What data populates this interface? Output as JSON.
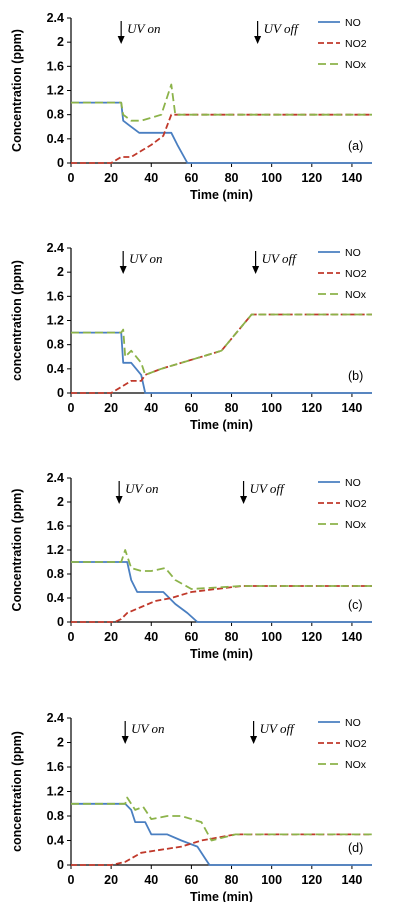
{
  "chart_data": [
    {
      "type": "line",
      "panel_label": "(a)",
      "xlabel": "Time (min)",
      "ylabel": "Concentration (ppm)",
      "xlim": [
        0,
        150
      ],
      "ylim": [
        0,
        2.4
      ],
      "xticks": [
        "0",
        "20",
        "40",
        "60",
        "80",
        "100",
        "120",
        "140"
      ],
      "yticks": [
        "0",
        "0.4",
        "0.8",
        "1.2",
        "1.6",
        "2",
        "2.4"
      ],
      "annotations": [
        {
          "text": "UV on",
          "x": 25
        },
        {
          "text": "UV off",
          "x": 93
        }
      ],
      "legend_position": "top-right",
      "series": [
        {
          "name": "NO",
          "color": "#4a7fc1",
          "dash": "solid",
          "points": [
            [
              0,
              1
            ],
            [
              25,
              1
            ],
            [
              26,
              0.7
            ],
            [
              30,
              0.6
            ],
            [
              34,
              0.5
            ],
            [
              50,
              0.5
            ],
            [
              53,
              0.3
            ],
            [
              58,
              0
            ],
            [
              150,
              0
            ]
          ]
        },
        {
          "name": "NO2",
          "color": "#c0392b",
          "dash": "6,3",
          "points": [
            [
              0,
              0
            ],
            [
              20,
              0
            ],
            [
              25,
              0.1
            ],
            [
              30,
              0.1
            ],
            [
              35,
              0.2
            ],
            [
              40,
              0.3
            ],
            [
              46,
              0.45
            ],
            [
              50,
              0.8
            ],
            [
              52,
              0.8
            ],
            [
              150,
              0.8
            ]
          ]
        },
        {
          "name": "NOx",
          "color": "#8cb34a",
          "dash": "8,4",
          "points": [
            [
              0,
              1
            ],
            [
              25,
              1
            ],
            [
              26,
              0.8
            ],
            [
              30,
              0.7
            ],
            [
              35,
              0.7
            ],
            [
              40,
              0.75
            ],
            [
              45,
              0.8
            ],
            [
              50,
              1.3
            ],
            [
              52,
              0.8
            ],
            [
              150,
              0.8
            ]
          ]
        }
      ]
    },
    {
      "type": "line",
      "panel_label": "(b)",
      "xlabel": "Time (min)",
      "ylabel": "concentration (ppm)",
      "xlim": [
        0,
        150
      ],
      "ylim": [
        0,
        2.4
      ],
      "xticks": [
        "0",
        "20",
        "40",
        "60",
        "80",
        "100",
        "120",
        "140"
      ],
      "yticks": [
        "0",
        "0.4",
        "0.8",
        "1.2",
        "1.6",
        "2",
        "2.4"
      ],
      "annotations": [
        {
          "text": "UV on",
          "x": 26
        },
        {
          "text": "UV off",
          "x": 92
        }
      ],
      "legend_position": "top-right",
      "series": [
        {
          "name": "NO",
          "color": "#4a7fc1",
          "dash": "solid",
          "points": [
            [
              0,
              1
            ],
            [
              25,
              1
            ],
            [
              26,
              0.5
            ],
            [
              30,
              0.5
            ],
            [
              35,
              0.3
            ],
            [
              37,
              0
            ],
            [
              150,
              0
            ]
          ]
        },
        {
          "name": "NO2",
          "color": "#c0392b",
          "dash": "6,3",
          "points": [
            [
              0,
              0
            ],
            [
              20,
              0
            ],
            [
              25,
              0.1
            ],
            [
              30,
              0.2
            ],
            [
              35,
              0.2
            ],
            [
              37,
              0.3
            ],
            [
              45,
              0.4
            ],
            [
              55,
              0.5
            ],
            [
              65,
              0.6
            ],
            [
              75,
              0.7
            ],
            [
              90,
              1.3
            ],
            [
              150,
              1.3
            ]
          ]
        },
        {
          "name": "NOx",
          "color": "#8cb34a",
          "dash": "8,4",
          "points": [
            [
              0,
              1
            ],
            [
              25,
              1
            ],
            [
              26,
              1.05
            ],
            [
              27,
              0.6
            ],
            [
              30,
              0.7
            ],
            [
              35,
              0.5
            ],
            [
              37,
              0.3
            ],
            [
              45,
              0.4
            ],
            [
              55,
              0.5
            ],
            [
              65,
              0.6
            ],
            [
              75,
              0.7
            ],
            [
              90,
              1.3
            ],
            [
              150,
              1.3
            ]
          ]
        }
      ]
    },
    {
      "type": "line",
      "panel_label": "(c)",
      "xlabel": "Time (min)",
      "ylabel": "Concentration (ppm)",
      "xlim": [
        0,
        150
      ],
      "ylim": [
        0,
        2.4
      ],
      "xticks": [
        "0",
        "20",
        "40",
        "60",
        "80",
        "100",
        "120",
        "140"
      ],
      "yticks": [
        "0",
        "0.4",
        "0.8",
        "1.2",
        "1.6",
        "2",
        "2.4"
      ],
      "annotations": [
        {
          "text": "UV on",
          "x": 24
        },
        {
          "text": "UV off",
          "x": 86
        }
      ],
      "legend_position": "top-right",
      "series": [
        {
          "name": "NO",
          "color": "#4a7fc1",
          "dash": "solid",
          "points": [
            [
              0,
              1
            ],
            [
              25,
              1
            ],
            [
              28,
              1
            ],
            [
              30,
              0.7
            ],
            [
              33,
              0.5
            ],
            [
              46,
              0.5
            ],
            [
              52,
              0.3
            ],
            [
              58,
              0.15
            ],
            [
              63,
              0
            ],
            [
              150,
              0
            ]
          ]
        },
        {
          "name": "NO2",
          "color": "#c0392b",
          "dash": "6,3",
          "points": [
            [
              0,
              0
            ],
            [
              22,
              0
            ],
            [
              25,
              0.05
            ],
            [
              28,
              0.15
            ],
            [
              35,
              0.25
            ],
            [
              42,
              0.35
            ],
            [
              50,
              0.4
            ],
            [
              60,
              0.5
            ],
            [
              85,
              0.6
            ],
            [
              150,
              0.6
            ]
          ]
        },
        {
          "name": "NOx",
          "color": "#8cb34a",
          "dash": "8,4",
          "points": [
            [
              0,
              1
            ],
            [
              25,
              1
            ],
            [
              27,
              1.2
            ],
            [
              30,
              0.9
            ],
            [
              35,
              0.85
            ],
            [
              40,
              0.85
            ],
            [
              47,
              0.9
            ],
            [
              52,
              0.7
            ],
            [
              60,
              0.55
            ],
            [
              85,
              0.6
            ],
            [
              150,
              0.6
            ]
          ]
        }
      ]
    },
    {
      "type": "line",
      "panel_label": "(d)",
      "xlabel": "Time (min)",
      "ylabel": "concentration (ppm)",
      "xlim": [
        0,
        150
      ],
      "ylim": [
        0,
        2.4
      ],
      "xticks": [
        "0",
        "20",
        "40",
        "60",
        "80",
        "100",
        "120",
        "140"
      ],
      "yticks": [
        "0",
        "0.4",
        "0.8",
        "1.2",
        "1.6",
        "2",
        "2.4"
      ],
      "annotations": [
        {
          "text": "UV on",
          "x": 27
        },
        {
          "text": "UV off",
          "x": 91
        }
      ],
      "legend_position": "top-right",
      "series": [
        {
          "name": "NO",
          "color": "#4a7fc1",
          "dash": "solid",
          "points": [
            [
              0,
              1
            ],
            [
              27,
              1
            ],
            [
              30,
              0.9
            ],
            [
              32,
              0.7
            ],
            [
              37,
              0.7
            ],
            [
              40,
              0.5
            ],
            [
              48,
              0.5
            ],
            [
              55,
              0.4
            ],
            [
              63,
              0.3
            ],
            [
              67,
              0.1
            ],
            [
              69,
              0
            ],
            [
              150,
              0
            ]
          ]
        },
        {
          "name": "NO2",
          "color": "#c0392b",
          "dash": "6,3",
          "points": [
            [
              0,
              0
            ],
            [
              20,
              0
            ],
            [
              27,
              0.05
            ],
            [
              35,
              0.2
            ],
            [
              45,
              0.25
            ],
            [
              55,
              0.3
            ],
            [
              65,
              0.4
            ],
            [
              82,
              0.5
            ],
            [
              150,
              0.5
            ]
          ]
        },
        {
          "name": "NOx",
          "color": "#8cb34a",
          "dash": "8,4",
          "points": [
            [
              0,
              1
            ],
            [
              27,
              1
            ],
            [
              28,
              1.1
            ],
            [
              32,
              0.9
            ],
            [
              36,
              0.95
            ],
            [
              40,
              0.75
            ],
            [
              48,
              0.8
            ],
            [
              55,
              0.8
            ],
            [
              65,
              0.7
            ],
            [
              70,
              0.4
            ],
            [
              82,
              0.5
            ],
            [
              150,
              0.5
            ]
          ]
        }
      ]
    }
  ]
}
